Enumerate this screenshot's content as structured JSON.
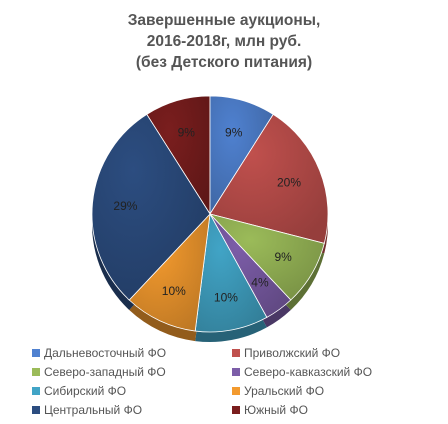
{
  "chart_data": {
    "type": "pie",
    "title_lines": [
      "Завершенные аукционы,",
      "2016-2018г, млн руб.",
      "(без Детского питания)"
    ],
    "slices": [
      {
        "name": "Дальневосточный ФО",
        "value": 9,
        "label": "9%",
        "color": "#4f81d0"
      },
      {
        "name": "Приволжский ФО",
        "value": 20,
        "label": "20%",
        "color": "#c0504d"
      },
      {
        "name": "Северо-западный ФО",
        "value": 9,
        "label": "9%",
        "color": "#9bbb59"
      },
      {
        "name": "Северо-кавказский ФО",
        "value": 4,
        "label": "4%",
        "color": "#7c5da8"
      },
      {
        "name": "Сибирский ФО",
        "value": 10,
        "label": "10%",
        "color": "#41a4c6"
      },
      {
        "name": "Уральский ФО",
        "value": 10,
        "label": "10%",
        "color": "#f39a2e"
      },
      {
        "name": "Центральный ФО",
        "value": 29,
        "label": "29%",
        "color": "#2c4d80"
      },
      {
        "name": "Южный ФО",
        "value": 9,
        "label": "9%",
        "color": "#7a1e1e"
      }
    ],
    "legend_position": "bottom"
  }
}
